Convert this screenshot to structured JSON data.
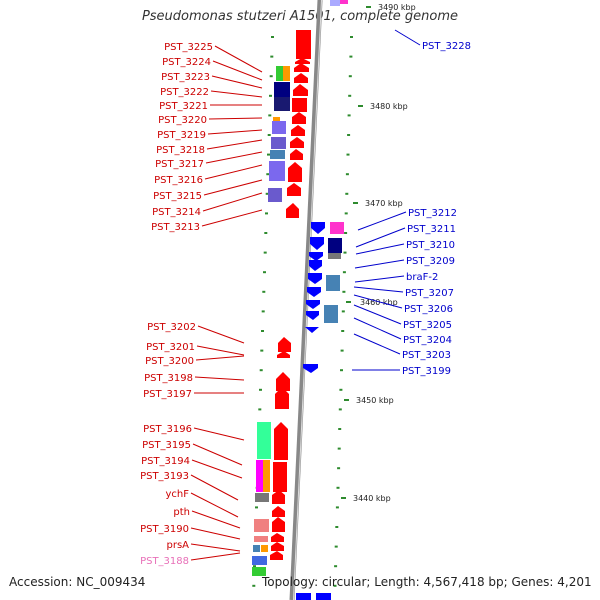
{
  "title": "Pseudomonas stutzeri A1501, complete genome",
  "footer": {
    "accession": "Accession: NC_009434",
    "stats": "Topology: circular; Length: 4,567,418 bp; Genes: 4,201"
  },
  "kbp_labels": [
    "3490 kbp",
    "3480 kbp",
    "3470 kbp",
    "3460 kbp",
    "3450 kbp",
    "3440 kbp"
  ],
  "left_labels": [
    "PST_3225",
    "PST_3224",
    "PST_3223",
    "PST_3222",
    "PST_3221",
    "PST_3220",
    "PST_3219",
    "PST_3218",
    "PST_3217",
    "PST_3216",
    "PST_3215",
    "PST_3214",
    "PST_3213",
    "PST_3202",
    "PST_3201",
    "PST_3200",
    "PST_3198",
    "PST_3197",
    "PST_3196",
    "PST_3195",
    "PST_3194",
    "PST_3193",
    "ychF",
    "pth",
    "PST_3190",
    "prsA",
    "PST_3188"
  ],
  "right_labels": [
    "PST_3228",
    "PST_3212",
    "PST_3211",
    "PST_3210",
    "PST_3209",
    "braF-2",
    "PST_3207",
    "PST_3206",
    "PST_3205",
    "PST_3204",
    "PST_3203",
    "PST_3199"
  ],
  "colors": {
    "forward": "#ff0000",
    "reverse": "#0000ff",
    "left_label": "#cc0000",
    "right_label": "#0000cc",
    "faded_label": "#e870b8",
    "tick": "#2e8b2e",
    "backbone": "#888888"
  }
}
